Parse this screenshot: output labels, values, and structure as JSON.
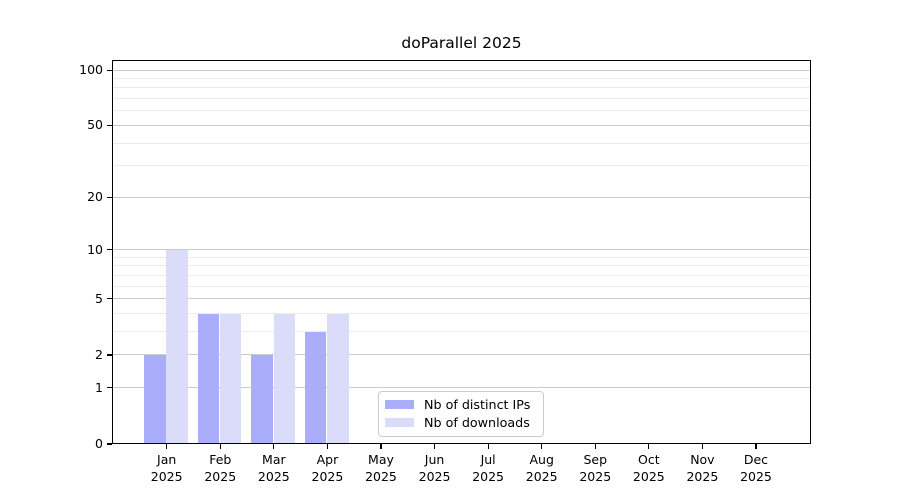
{
  "chart_data": {
    "type": "bar",
    "title": "doParallel 2025",
    "categories": [
      "Jan",
      "Feb",
      "Mar",
      "Apr",
      "May",
      "Jun",
      "Jul",
      "Aug",
      "Sep",
      "Oct",
      "Nov",
      "Dec"
    ],
    "x_tick_second_line": "2025",
    "series": [
      {
        "name": "Nb of distinct IPs",
        "color": "#aaadf9",
        "values": [
          2,
          4,
          2,
          3,
          0,
          0,
          0,
          0,
          0,
          0,
          0,
          0
        ]
      },
      {
        "name": "Nb of downloads",
        "color": "#dadcf9",
        "values": [
          10,
          4,
          4,
          4,
          0,
          0,
          0,
          0,
          0,
          0,
          0,
          0
        ]
      }
    ],
    "y_scale": "log10(1+x)",
    "y_major_ticks": [
      0,
      1,
      2,
      5,
      10,
      20,
      50,
      100
    ],
    "y_minor_gridlines": [
      3,
      4,
      6,
      7,
      8,
      9,
      30,
      40,
      60,
      70,
      80,
      90
    ],
    "ylim": [
      0,
      100
    ],
    "grid": true,
    "legend_position": "bottom-center-inside"
  },
  "colors": {
    "bar_distinct_ips": "#aaadf9",
    "bar_downloads": "#dadcf9",
    "grid_major": "#cbcbcb",
    "grid_minor": "#ebebeb",
    "axis": "#000000",
    "legend_border": "#cccccc",
    "background": "#ffffff"
  }
}
